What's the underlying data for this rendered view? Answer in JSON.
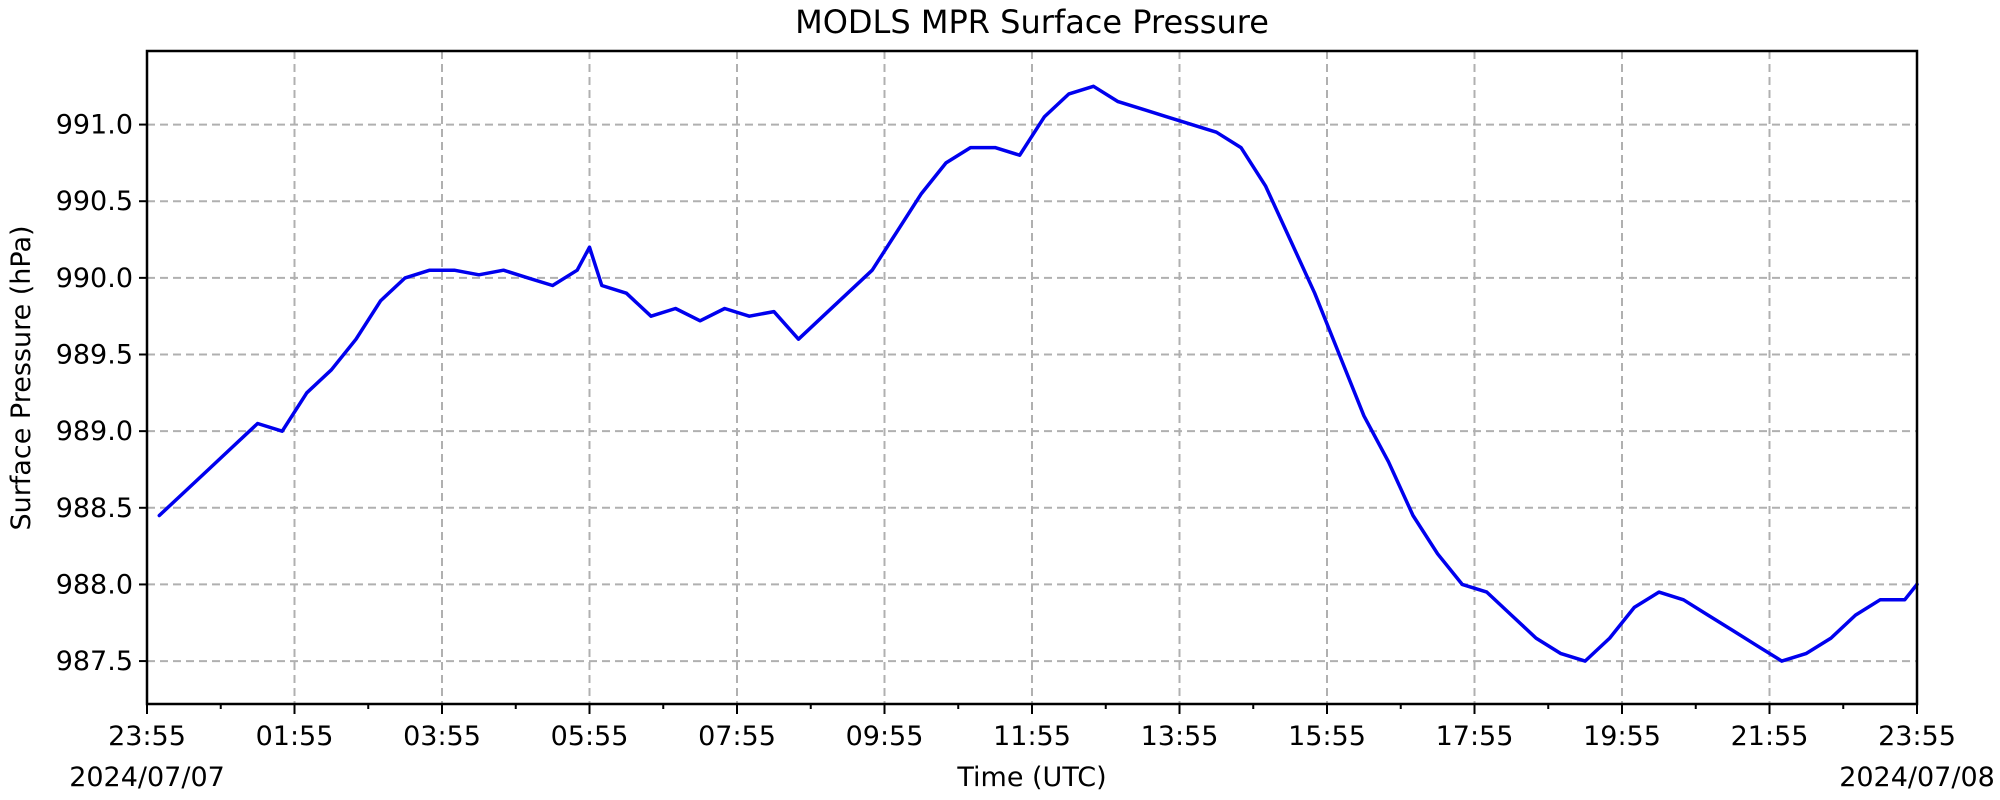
{
  "chart_data": {
    "type": "line",
    "title": "MODLS MPR Surface Pressure",
    "xlabel": "Time (UTC)",
    "ylabel": "Surface Pressure (hPa)",
    "start_date_label": "2024/07/07",
    "end_date_label": "2024/07/08",
    "x_ticks": [
      "23:55",
      "01:55",
      "03:55",
      "05:55",
      "07:55",
      "09:55",
      "11:55",
      "13:55",
      "15:55",
      "17:55",
      "19:55",
      "21:55",
      "23:55"
    ],
    "y_ticks": [
      "987.5",
      "988.0",
      "988.5",
      "989.0",
      "989.5",
      "990.0",
      "990.5",
      "991.0"
    ],
    "xlim": [
      "2024-07-07 23:55",
      "2024-07-08 23:55"
    ],
    "ylim": [
      987.22,
      991.48
    ],
    "grid": true,
    "series": [
      {
        "color": "#0000ee",
        "x": [
          "2024-07-08 00:05",
          "2024-07-08 00:25",
          "2024-07-08 00:45",
          "2024-07-08 01:05",
          "2024-07-08 01:25",
          "2024-07-08 01:45",
          "2024-07-08 02:05",
          "2024-07-08 02:25",
          "2024-07-08 02:45",
          "2024-07-08 03:05",
          "2024-07-08 03:25",
          "2024-07-08 03:45",
          "2024-07-08 04:05",
          "2024-07-08 04:25",
          "2024-07-08 04:45",
          "2024-07-08 05:05",
          "2024-07-08 05:25",
          "2024-07-08 05:45",
          "2024-07-08 05:55",
          "2024-07-08 06:05",
          "2024-07-08 06:25",
          "2024-07-08 06:45",
          "2024-07-08 07:05",
          "2024-07-08 07:25",
          "2024-07-08 07:45",
          "2024-07-08 08:05",
          "2024-07-08 08:25",
          "2024-07-08 08:45",
          "2024-07-08 09:05",
          "2024-07-08 09:25",
          "2024-07-08 09:45",
          "2024-07-08 10:05",
          "2024-07-08 10:25",
          "2024-07-08 10:45",
          "2024-07-08 11:05",
          "2024-07-08 11:25",
          "2024-07-08 11:45",
          "2024-07-08 12:05",
          "2024-07-08 12:25",
          "2024-07-08 12:45",
          "2024-07-08 13:05",
          "2024-07-08 13:25",
          "2024-07-08 13:45",
          "2024-07-08 14:05",
          "2024-07-08 14:25",
          "2024-07-08 14:45",
          "2024-07-08 15:05",
          "2024-07-08 15:25",
          "2024-07-08 15:45",
          "2024-07-08 16:05",
          "2024-07-08 16:25",
          "2024-07-08 16:45",
          "2024-07-08 17:05",
          "2024-07-08 17:25",
          "2024-07-08 17:45",
          "2024-07-08 18:05",
          "2024-07-08 18:25",
          "2024-07-08 18:45",
          "2024-07-08 19:05",
          "2024-07-08 19:25",
          "2024-07-08 19:45",
          "2024-07-08 20:05",
          "2024-07-08 20:25",
          "2024-07-08 20:45",
          "2024-07-08 21:05",
          "2024-07-08 21:25",
          "2024-07-08 21:45",
          "2024-07-08 22:05",
          "2024-07-08 22:25",
          "2024-07-08 22:45",
          "2024-07-08 23:05",
          "2024-07-08 23:25",
          "2024-07-08 23:45",
          "2024-07-08 23:55"
        ],
        "y": [
          988.45,
          988.6,
          988.75,
          988.9,
          989.05,
          989.0,
          989.25,
          989.4,
          989.6,
          989.85,
          990.0,
          990.05,
          990.05,
          990.02,
          990.05,
          990.0,
          989.95,
          990.05,
          990.2,
          989.95,
          989.9,
          989.75,
          989.8,
          989.72,
          989.8,
          989.75,
          989.78,
          989.6,
          989.75,
          989.9,
          990.05,
          990.3,
          990.55,
          990.75,
          990.85,
          990.85,
          990.8,
          991.05,
          991.2,
          991.25,
          991.15,
          991.1,
          991.05,
          991.0,
          990.95,
          990.85,
          990.6,
          990.25,
          989.9,
          989.5,
          989.1,
          988.8,
          988.45,
          988.2,
          988.0,
          987.95,
          987.8,
          987.65,
          987.55,
          987.5,
          987.65,
          987.85,
          987.95,
          987.9,
          987.8,
          987.7,
          987.6,
          987.5,
          987.55,
          987.65,
          987.8,
          987.9,
          987.9,
          988.0
        ]
      }
    ]
  }
}
